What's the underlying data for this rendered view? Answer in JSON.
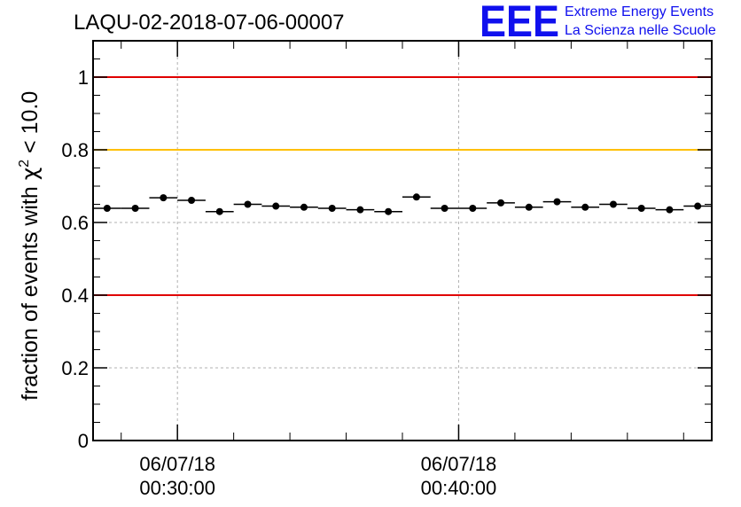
{
  "title": "LAQU-02-2018-07-06-00007",
  "logo": {
    "mark": "EEE",
    "line1": "Extreme Energy Events",
    "line2": "La Scienza nelle Scuole",
    "color": "#1010ee"
  },
  "chart_data": {
    "type": "scatter",
    "title": "LAQU-02-2018-07-06-00007",
    "ylabel": {
      "prefix": "fraction of events with ",
      "symbol": "χ",
      "superscript": "2",
      "suffix": " < 10.0"
    },
    "ylim": [
      0,
      1.1
    ],
    "y_ticks": [
      0,
      0.2,
      0.4,
      0.6,
      0.8,
      1
    ],
    "y_tick_labels": [
      "0",
      "0.2",
      "0.4",
      "0.6",
      "0.8",
      "1"
    ],
    "x_tick_labels": [
      {
        "date": "06/07/18",
        "time": "00:30:00"
      },
      {
        "date": "06/07/18",
        "time": "00:40:00"
      }
    ],
    "grid": true,
    "reference_lines": [
      {
        "y": 1.0,
        "color": "#e00000"
      },
      {
        "y": 0.8,
        "color": "#ffc000"
      },
      {
        "y": 0.4,
        "color": "#e00000"
      }
    ],
    "x_unit": "minutes",
    "x_range": [
      "00:27:00",
      "00:49:00"
    ],
    "bin_width_minutes": 1,
    "x": [
      "00:27:30",
      "00:28:30",
      "00:29:30",
      "00:30:30",
      "00:31:30",
      "00:32:30",
      "00:33:30",
      "00:34:30",
      "00:35:30",
      "00:36:30",
      "00:37:30",
      "00:38:30",
      "00:39:30",
      "00:40:30",
      "00:41:30",
      "00:42:30",
      "00:43:30",
      "00:44:30",
      "00:45:30",
      "00:46:30",
      "00:47:30",
      "00:48:30"
    ],
    "values": [
      0.639,
      0.639,
      0.668,
      0.661,
      0.63,
      0.65,
      0.645,
      0.642,
      0.639,
      0.635,
      0.63,
      0.67,
      0.639,
      0.639,
      0.654,
      0.642,
      0.657,
      0.642,
      0.65,
      0.639,
      0.635,
      0.645
    ],
    "series_color": "#000000"
  }
}
